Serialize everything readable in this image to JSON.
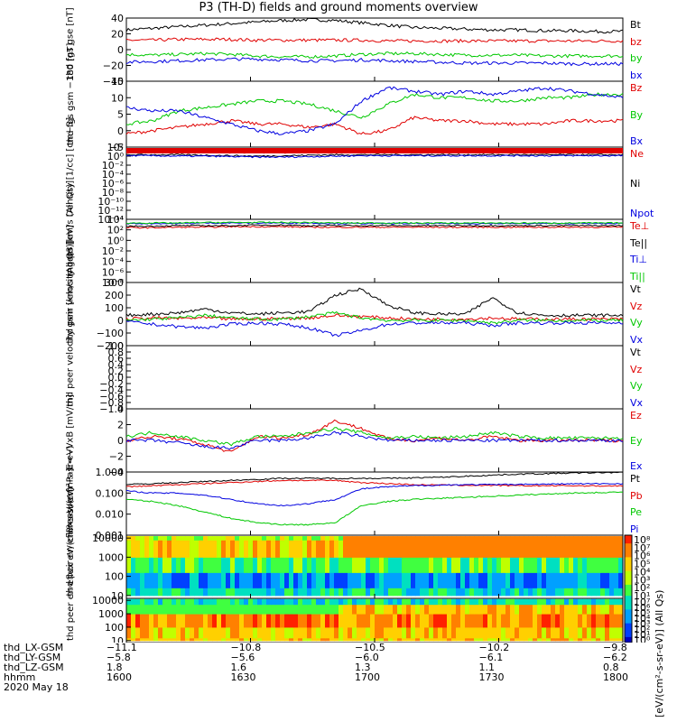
{
  "title": "P3 (TH-D) fields and ground moments overview",
  "colors": {
    "black": "#000000",
    "red": "#e00000",
    "green": "#00c800",
    "blue": "#0000e0"
  },
  "chart_data": [
    {
      "type": "line",
      "ylabel": "thd fgs gse [nT]",
      "ylim": [
        -40,
        40
      ],
      "yticks": [
        "40",
        "20",
        "0",
        "−20",
        "−40"
      ],
      "series": [
        {
          "name": "Bt",
          "color": "black",
          "values": [
            25,
            27,
            29,
            31,
            33,
            35,
            37,
            38,
            37,
            34,
            31,
            28,
            27,
            26,
            25,
            25,
            24,
            24,
            23,
            23
          ]
        },
        {
          "name": "bz",
          "color": "red",
          "values": [
            12,
            12,
            13,
            13,
            13,
            12,
            12,
            12,
            12,
            12,
            11,
            11,
            11,
            11,
            11,
            11,
            11,
            11,
            11,
            11
          ]
        },
        {
          "name": "by",
          "color": "green",
          "values": [
            -6,
            -7,
            -6,
            -5,
            -6,
            -8,
            -9,
            -9,
            -8,
            -6,
            -5,
            -5,
            -6,
            -7,
            -7,
            -7,
            -8,
            -8,
            -8,
            -8
          ]
        },
        {
          "name": "bx",
          "color": "blue",
          "values": [
            -16,
            -15,
            -14,
            -13,
            -12,
            -12,
            -13,
            -14,
            -14,
            -13,
            -14,
            -15,
            -16,
            -17,
            -17,
            -17,
            -17,
            -18,
            -18,
            -18
          ]
        }
      ]
    },
    {
      "type": "line",
      "ylabel": "thd fgs gsm −180 [nT]",
      "ylim": [
        -5,
        15
      ],
      "yticks": [
        "15",
        "10",
        "5",
        "0",
        "−5"
      ],
      "series": [
        {
          "name": "Bz",
          "color": "red",
          "values": [
            -1,
            0,
            1,
            2,
            3,
            2,
            2,
            1,
            2,
            -1,
            0,
            4,
            3,
            3,
            2,
            2,
            2,
            3,
            3,
            3
          ]
        },
        {
          "name": "By",
          "color": "green",
          "values": [
            2,
            3,
            6,
            7,
            8,
            9,
            9,
            8,
            6,
            4,
            8,
            11,
            10,
            10,
            9,
            9,
            10,
            10,
            11,
            11
          ]
        },
        {
          "name": "Bx",
          "color": "blue",
          "values": [
            7,
            6,
            6,
            4,
            2,
            0,
            -1,
            0,
            2,
            9,
            13,
            12,
            11,
            12,
            11,
            12,
            13,
            12,
            11,
            10
          ]
        }
      ]
    },
    {
      "type": "line",
      "ylabel": "Density [1/cc] [cm−3]",
      "ylim": [
        -14,
        2
      ],
      "log": true,
      "yticks": [
        "10²",
        "10⁰",
        "10⁻²",
        "10⁻⁴",
        "10⁻⁶",
        "10⁻⁸",
        "10⁻¹⁰",
        "10⁻¹²",
        "10⁻¹⁴"
      ],
      "series": [
        {
          "name": "Ne",
          "color": "red",
          "values": [
            0.8,
            0.8,
            0.8,
            0.8,
            0.8,
            0.8,
            0.8,
            0.8,
            0.8,
            0.8,
            0.8,
            0.8,
            0.8,
            0.8,
            0.8,
            0.8,
            0.8,
            0.8,
            0.8,
            0.8
          ]
        },
        {
          "name": "Ni",
          "color": "black",
          "values": [
            0.3,
            0.3,
            0.3,
            0.2,
            0.1,
            0.0,
            0.1,
            0.2,
            0.3,
            0.3,
            0.3,
            0.3,
            0.3,
            0.3,
            0.3,
            0.3,
            0.3,
            0.3,
            0.3,
            0.3
          ]
        },
        {
          "name": "Npot",
          "color": "blue",
          "values": [
            0.1,
            0.1,
            0.0,
            0.0,
            -0.1,
            -0.2,
            -0.2,
            -0.1,
            0.0,
            0.1,
            0.1,
            0.1,
            0.1,
            0.1,
            0.1,
            0.1,
            0.1,
            0.1,
            0.1,
            0.1
          ]
        }
      ]
    },
    {
      "type": "line",
      "ylabel": "moqt3 [eV]",
      "ylim": [
        -8,
        4
      ],
      "log": true,
      "yticks": [
        "10⁴",
        "10²",
        "10⁰",
        "10⁻²",
        "10⁻⁴",
        "10⁻⁶",
        "10⁻⁸"
      ],
      "series": [
        {
          "name": "Te⊥",
          "color": "red",
          "values": [
            2.4,
            2.4,
            2.5,
            2.5,
            2.6,
            2.6,
            2.6,
            2.5,
            2.5,
            2.5,
            2.5,
            2.5,
            2.5,
            2.5,
            2.5,
            2.5,
            2.5,
            2.5,
            2.5,
            2.5
          ]
        },
        {
          "name": "Te||",
          "color": "black",
          "values": [
            2.7,
            2.7,
            2.8,
            2.8,
            2.8,
            2.9,
            2.9,
            2.8,
            2.8,
            2.8,
            2.8,
            2.8,
            2.8,
            2.8,
            2.8,
            2.8,
            2.8,
            2.8,
            2.8,
            2.8
          ]
        },
        {
          "name": "Ti⊥",
          "color": "blue",
          "values": [
            3.2,
            3.2,
            3.2,
            3.3,
            3.3,
            3.3,
            3.3,
            3.3,
            3.2,
            3.2,
            3.2,
            3.2,
            3.2,
            3.2,
            3.2,
            3.2,
            3.2,
            3.2,
            3.2,
            3.2
          ]
        },
        {
          "name": "Ti||",
          "color": "green",
          "values": [
            3.3,
            3.3,
            3.3,
            3.4,
            3.4,
            3.4,
            3.4,
            3.4,
            3.3,
            3.3,
            3.3,
            3.3,
            3.3,
            3.3,
            3.3,
            3.3,
            3.3,
            3.3,
            3.3,
            3.3
          ]
        }
      ]
    },
    {
      "type": "line",
      "ylabel": "thd peir velocity gsm [km/s (All Qs)]",
      "ylim": [
        -200,
        300
      ],
      "yticks": [
        "300",
        "200",
        "100",
        "0",
        "−100",
        "−200"
      ],
      "series": [
        {
          "name": "Vt",
          "color": "black",
          "values": [
            40,
            50,
            60,
            90,
            60,
            50,
            60,
            70,
            200,
            250,
            120,
            60,
            50,
            50,
            180,
            60,
            40,
            40,
            40,
            40
          ]
        },
        {
          "name": "Vz",
          "color": "red",
          "values": [
            10,
            20,
            15,
            20,
            10,
            10,
            15,
            20,
            40,
            30,
            20,
            10,
            10,
            10,
            20,
            10,
            10,
            10,
            10,
            10
          ]
        },
        {
          "name": "Vy",
          "color": "green",
          "values": [
            0,
            10,
            20,
            40,
            20,
            10,
            10,
            30,
            60,
            20,
            0,
            0,
            0,
            0,
            -20,
            0,
            0,
            0,
            0,
            0
          ]
        },
        {
          "name": "Vx",
          "color": "blue",
          "values": [
            -10,
            -30,
            -50,
            -60,
            -30,
            -20,
            -30,
            -60,
            -120,
            -80,
            -30,
            -20,
            -20,
            -20,
            -40,
            -20,
            -20,
            -20,
            -20,
            -20
          ]
        }
      ]
    },
    {
      "type": "line",
      "ylabel": "thd peer velocity gsm [km/s (All Qs)]",
      "ylim": [
        -1.0,
        1.0
      ],
      "yticks": [
        "1.0",
        "0.8",
        "0.6",
        "0.4",
        "0.2",
        "0.0",
        "−0.2",
        "−0.4",
        "−0.6",
        "−0.8",
        "−1.0"
      ],
      "series": [
        {
          "name": "Vt",
          "color": "black",
          "values": []
        },
        {
          "name": "Vz",
          "color": "red",
          "values": []
        },
        {
          "name": "Vy",
          "color": "green",
          "values": []
        },
        {
          "name": "Vx",
          "color": "blue",
          "values": []
        }
      ]
    },
    {
      "type": "line",
      "ylabel": "E=−VxB [mV/m]",
      "ylim": [
        -4,
        4
      ],
      "yticks": [
        "4",
        "2",
        "0",
        "−2",
        "−4"
      ],
      "series": [
        {
          "name": "Ez",
          "color": "red",
          "values": [
            0,
            0.5,
            0.2,
            -0.5,
            -1.5,
            0.5,
            0.3,
            0.8,
            2.5,
            1.5,
            0.2,
            0,
            0.3,
            0,
            0.5,
            0,
            0,
            0,
            0,
            0
          ]
        },
        {
          "name": "Ey",
          "color": "green",
          "values": [
            0.5,
            1,
            0.5,
            0,
            -0.5,
            0.5,
            0.5,
            1,
            1.5,
            1,
            0.3,
            0.5,
            0.3,
            0.5,
            1,
            0.5,
            0.3,
            0.3,
            0.3,
            0.3
          ]
        },
        {
          "name": "Ex",
          "color": "blue",
          "values": [
            0,
            0,
            -0.3,
            -0.8,
            -1,
            0,
            0,
            0.3,
            1,
            0.5,
            0,
            0,
            0,
            0,
            0,
            0,
            0,
            0,
            0,
            0
          ]
        }
      ]
    },
    {
      "type": "line",
      "ylabel": "Pressure [nPa]",
      "ylim": [
        -3,
        0
      ],
      "log": true,
      "yticks": [
        "1.000",
        "0.100",
        "0.010",
        "0.001"
      ],
      "series": [
        {
          "name": "Pt",
          "color": "black",
          "values": [
            -0.6,
            -0.55,
            -0.5,
            -0.45,
            -0.4,
            -0.35,
            -0.3,
            -0.3,
            -0.3,
            -0.3,
            -0.3,
            -0.28,
            -0.25,
            -0.2,
            -0.15,
            -0.1,
            -0.08,
            -0.05,
            -0.03,
            -0.02
          ]
        },
        {
          "name": "Pb",
          "color": "red",
          "values": [
            -0.7,
            -0.65,
            -0.6,
            -0.55,
            -0.5,
            -0.45,
            -0.4,
            -0.4,
            -0.4,
            -0.5,
            -0.55,
            -0.6,
            -0.62,
            -0.63,
            -0.64,
            -0.65,
            -0.65,
            -0.65,
            -0.66,
            -0.66
          ]
        },
        {
          "name": "Pe",
          "color": "green",
          "values": [
            -1.3,
            -1.4,
            -1.6,
            -1.9,
            -2.2,
            -2.4,
            -2.5,
            -2.5,
            -2.4,
            -1.6,
            -1.4,
            -1.3,
            -1.25,
            -1.2,
            -1.15,
            -1.1,
            -1.05,
            -1.0,
            -0.98,
            -0.95
          ]
        },
        {
          "name": "Pi",
          "color": "blue",
          "values": [
            -0.9,
            -1.0,
            -1.0,
            -1.1,
            -1.3,
            -1.5,
            -1.6,
            -1.5,
            -1.3,
            -0.8,
            -0.7,
            -0.65,
            -0.62,
            -0.6,
            -0.6,
            -0.58,
            -0.58,
            -0.56,
            -0.56,
            -0.55
          ]
        }
      ]
    },
    {
      "type": "heatmap",
      "ylabel": "thd peir en eflux eV/(cm²-s-sr-eV)",
      "ylim": [
        10,
        10000
      ],
      "log": true,
      "yticks": [
        "10000",
        "1000",
        "100",
        "10"
      ],
      "bands": [
        {
          "from": 1.0,
          "to": 1.4,
          "level": 3
        },
        {
          "from": 1.4,
          "to": 2.2,
          "level": 2
        },
        {
          "from": 2.2,
          "to": 3.0,
          "level": 4
        },
        {
          "from": 3.0,
          "to": 3.9,
          "level": 6
        },
        {
          "from": 3.9,
          "to": 4.1,
          "level": 5
        }
      ]
    },
    {
      "type": "heatmap",
      "ylabel": "thd peer en eflux eV/(cm²-s-sr-eV)",
      "ylim": [
        10,
        10000
      ],
      "log": true,
      "yticks": [
        "10000",
        "1000",
        "100",
        "10"
      ],
      "bands": [
        {
          "from": 1.0,
          "to": 1.2,
          "level": 6
        },
        {
          "from": 1.2,
          "to": 2.0,
          "level": 6
        },
        {
          "from": 2.0,
          "to": 3.0,
          "level": 7
        },
        {
          "from": 3.0,
          "to": 3.7,
          "level": 6
        },
        {
          "from": 3.7,
          "to": 4.1,
          "level": 3
        }
      ]
    }
  ],
  "colorbar": {
    "label": "[eV/(cm²-s-sr-eV)] (All Qs)",
    "ticks_top": [
      "10⁸",
      "10⁷",
      "10⁶",
      "10⁵",
      "10⁴",
      "10³",
      "10²",
      "10¹"
    ],
    "ticks_bottom": [
      "10⁷",
      "10⁶",
      "10⁵",
      "10⁴",
      "10³",
      "10²",
      "10¹",
      "10⁰"
    ]
  },
  "footer": {
    "rows": [
      {
        "label": "thd_LX-GSM",
        "values": [
          "−11.1",
          "−10.8",
          "−10.5",
          "−10.2",
          "−9.8"
        ]
      },
      {
        "label": "thd_LY-GSM",
        "values": [
          "−5.8",
          "−5.6",
          "−6.0",
          "−6.1",
          "−6.2"
        ]
      },
      {
        "label": "thd_LZ-GSM",
        "values": [
          "1.8",
          "1.6",
          "1.3",
          "1.1",
          "0.8"
        ]
      },
      {
        "label": "hhmm",
        "values": [
          "1600",
          "1630",
          "1700",
          "1730",
          "1800"
        ]
      }
    ],
    "date": "2020 May 18"
  }
}
